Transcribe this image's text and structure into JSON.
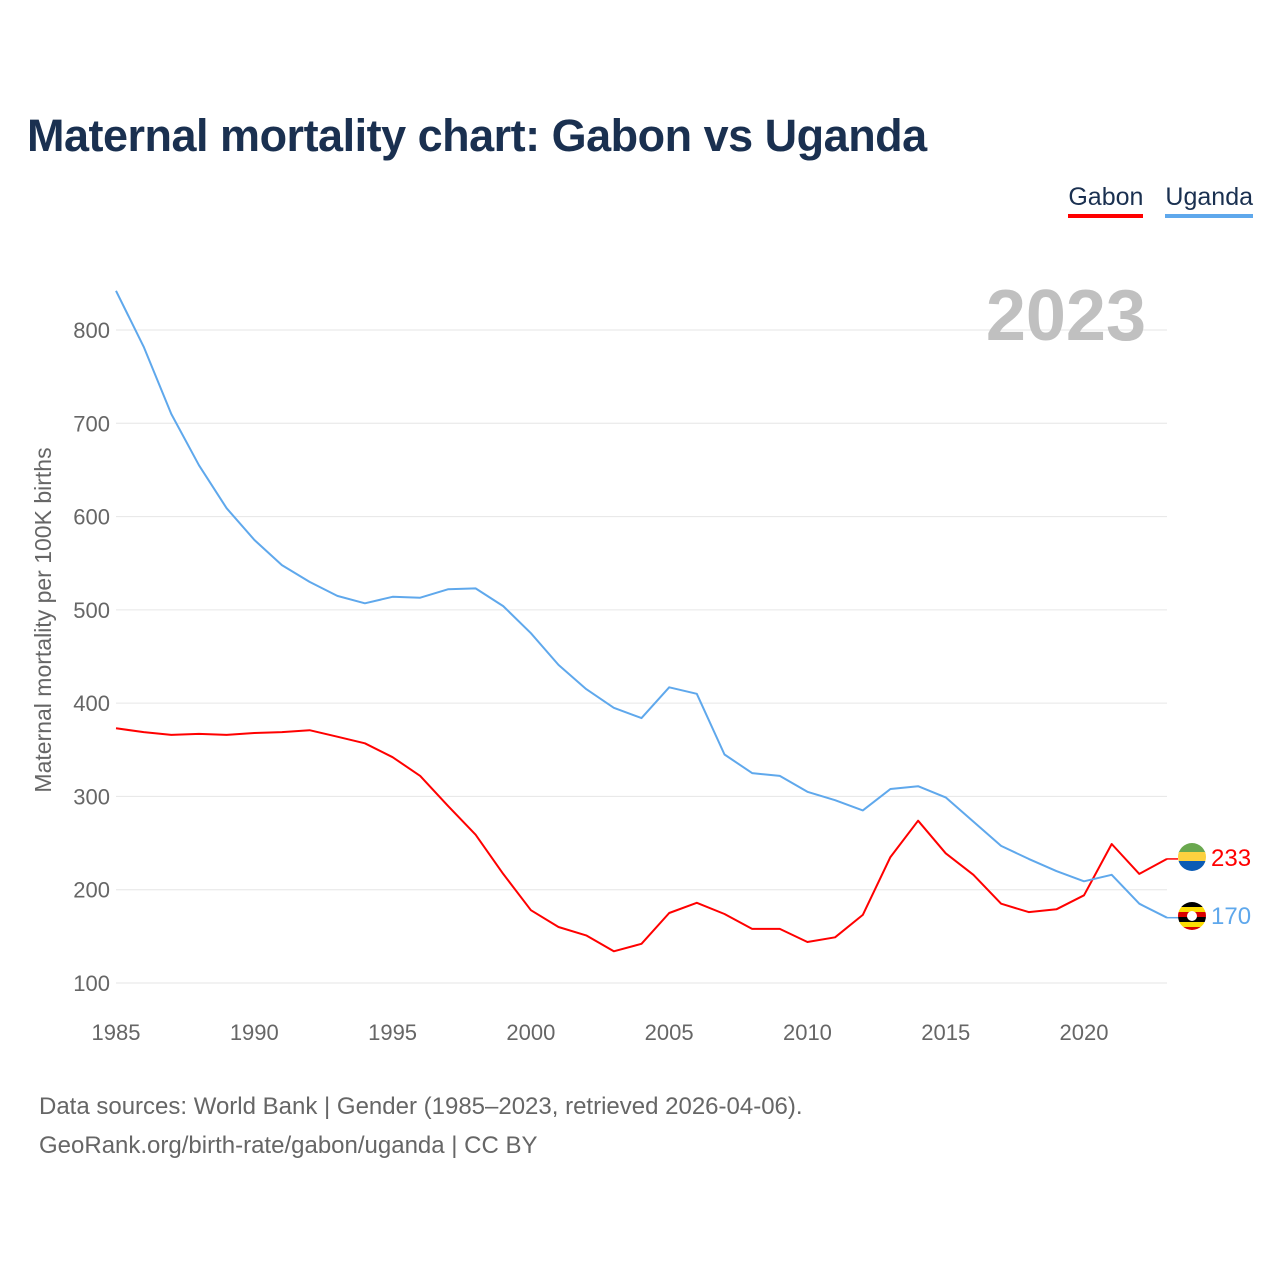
{
  "title": "Maternal mortality chart: Gabon vs Uganda",
  "legend": [
    {
      "label": "Gabon",
      "color": "#ff0000"
    },
    {
      "label": "Uganda",
      "color": "#5fa8ec"
    }
  ],
  "year_watermark": "2023",
  "source_line1": "Data sources: World Bank | Gender (1985–2023, retrieved 2026-04-06).",
  "source_line2": "GeoRank.org/birth-rate/gabon/uganda | CC BY",
  "chart_data": {
    "type": "line",
    "title": "Maternal mortality chart: Gabon vs Uganda",
    "xlabel": "",
    "ylabel": "Maternal mortality per 100K births",
    "xlim": [
      1985,
      2023
    ],
    "ylim": [
      100,
      800
    ],
    "x_ticks": [
      1985,
      1990,
      1995,
      2000,
      2005,
      2010,
      2015,
      2020
    ],
    "y_ticks": [
      100,
      200,
      300,
      400,
      500,
      600,
      700,
      800
    ],
    "grid": true,
    "legend_position": "top-right",
    "x": [
      1985,
      1986,
      1987,
      1988,
      1989,
      1990,
      1991,
      1992,
      1993,
      1994,
      1995,
      1996,
      1997,
      1998,
      1999,
      2000,
      2001,
      2002,
      2003,
      2004,
      2005,
      2006,
      2007,
      2008,
      2009,
      2010,
      2011,
      2012,
      2013,
      2014,
      2015,
      2016,
      2017,
      2018,
      2019,
      2020,
      2021,
      2022,
      2023
    ],
    "series": [
      {
        "name": "Gabon",
        "color": "#ff0000",
        "end_label": "233",
        "values": [
          373,
          369,
          366,
          367,
          366,
          368,
          369,
          371,
          364,
          357,
          342,
          322,
          290,
          259,
          217,
          178,
          160,
          151,
          134,
          142,
          175,
          186,
          174,
          158,
          158,
          144,
          149,
          173,
          235,
          274,
          239,
          216,
          185,
          176,
          179,
          194,
          249,
          217,
          233
        ]
      },
      {
        "name": "Uganda",
        "color": "#5fa8ec",
        "end_label": "170",
        "values": [
          842,
          782,
          710,
          655,
          609,
          575,
          548,
          530,
          515,
          507,
          514,
          513,
          522,
          523,
          504,
          475,
          441,
          415,
          395,
          384,
          417,
          410,
          345,
          325,
          322,
          305,
          296,
          285,
          308,
          311,
          299,
          273,
          247,
          233,
          220,
          209,
          216,
          185,
          170
        ]
      }
    ]
  }
}
